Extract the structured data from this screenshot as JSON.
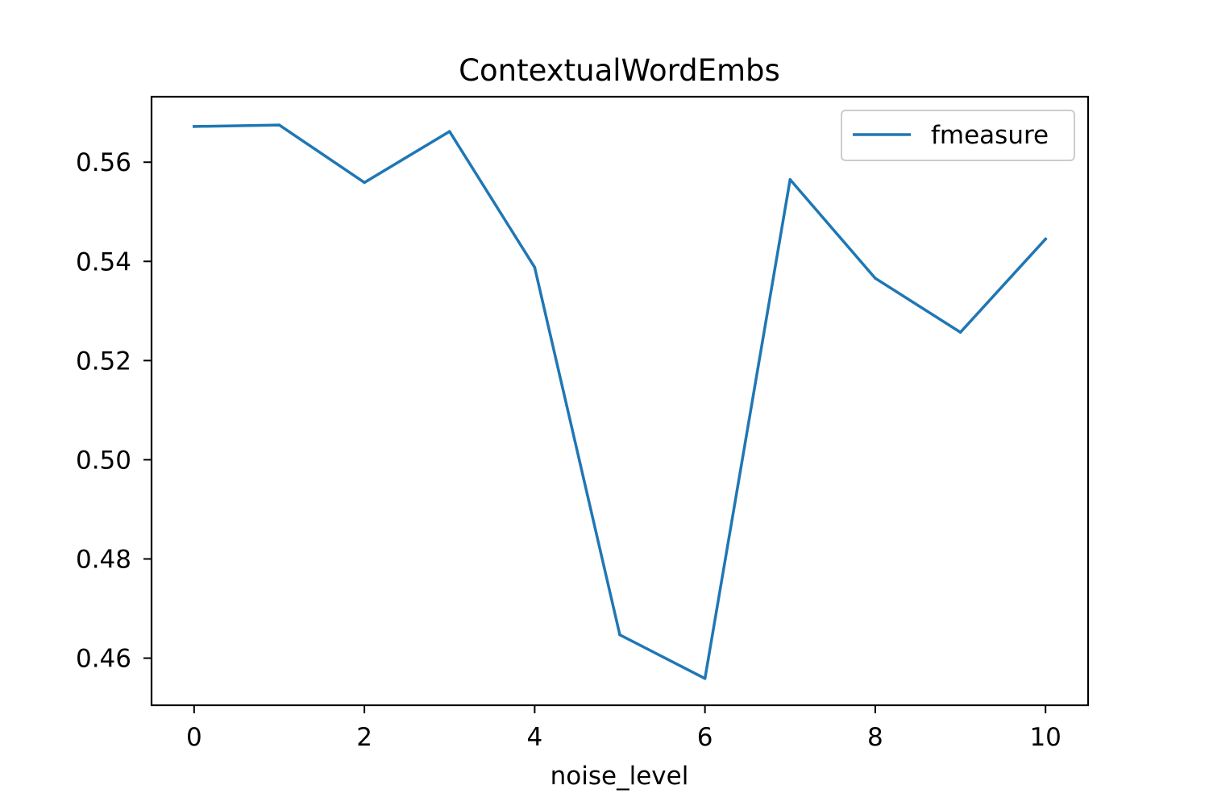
{
  "chart_data": {
    "type": "line",
    "title": "ContextualWordEmbs",
    "xlabel": "noise_level",
    "ylabel": "",
    "xlim": [
      -0.5,
      10.5
    ],
    "ylim": [
      0.4505,
      0.5732
    ],
    "x_ticks": [
      0,
      2,
      4,
      6,
      8,
      10
    ],
    "x_tick_labels": [
      "0",
      "2",
      "4",
      "6",
      "8",
      "10"
    ],
    "y_ticks": [
      0.46,
      0.48,
      0.5,
      0.52,
      0.54,
      0.56
    ],
    "y_tick_labels": [
      "0.46",
      "0.48",
      "0.50",
      "0.52",
      "0.54",
      "0.56"
    ],
    "grid": false,
    "legend_position": "top-right",
    "series": [
      {
        "name": "fmeasure",
        "color": "#1f77b4",
        "x": [
          0,
          1,
          2,
          3,
          4,
          5,
          6,
          7,
          8,
          9,
          10
        ],
        "values": [
          0.5672,
          0.5675,
          0.5559,
          0.5662,
          0.5388,
          0.4647,
          0.4559,
          0.5565,
          0.5366,
          0.5257,
          0.5445
        ]
      }
    ]
  }
}
